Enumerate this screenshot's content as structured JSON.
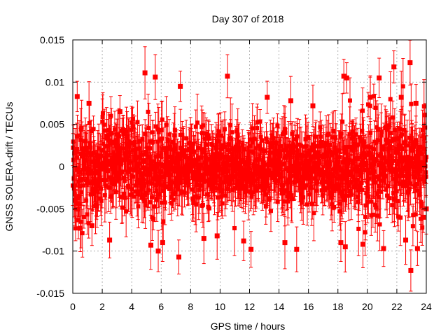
{
  "chart_data": {
    "type": "scatter",
    "title": "Day 307 of 2018",
    "xlabel": "GPS time / hours",
    "ylabel": "GNSS SOLERA-drift / TECUs",
    "xlim": [
      0,
      24
    ],
    "ylim": [
      -0.015,
      0.015
    ],
    "xticks": [
      0,
      2,
      4,
      6,
      8,
      10,
      12,
      14,
      16,
      18,
      20,
      22,
      24
    ],
    "yticks": [
      -0.015,
      -0.01,
      -0.005,
      0,
      0.005,
      0.01,
      0.015
    ],
    "ytick_labels": [
      "-0.015",
      "-0.01",
      "-0.005",
      "0",
      "0.005",
      "0.01",
      "0.015"
    ],
    "grid": true,
    "series_color": "#ff0000",
    "series": [
      {
        "name": "SOLERA-drift",
        "style": "points-with-errorbars",
        "points": [
          {
            "x": 0.3,
            "y": 0.0083
          },
          {
            "x": 0.15,
            "y": -0.004
          },
          {
            "x": 0.5,
            "y": -0.0073
          },
          {
            "x": 1.1,
            "y": 0.0075
          },
          {
            "x": 1.3,
            "y": -0.007
          },
          {
            "x": 2.5,
            "y": -0.0087
          },
          {
            "x": 3.2,
            "y": 0.0065
          },
          {
            "x": 4.9,
            "y": 0.0111
          },
          {
            "x": 5.3,
            "y": -0.0093
          },
          {
            "x": 5.6,
            "y": 0.0106
          },
          {
            "x": 5.8,
            "y": -0.01
          },
          {
            "x": 6.1,
            "y": -0.009
          },
          {
            "x": 7.2,
            "y": -0.0107
          },
          {
            "x": 7.3,
            "y": 0.0095
          },
          {
            "x": 8.9,
            "y": -0.0085
          },
          {
            "x": 9.8,
            "y": -0.0082
          },
          {
            "x": 10.5,
            "y": 0.0107
          },
          {
            "x": 11.6,
            "y": -0.0088
          },
          {
            "x": 12.1,
            "y": -0.0098
          },
          {
            "x": 13.2,
            "y": 0.0082
          },
          {
            "x": 14.4,
            "y": -0.009
          },
          {
            "x": 14.8,
            "y": 0.0078
          },
          {
            "x": 15.2,
            "y": -0.0098
          },
          {
            "x": 16.3,
            "y": 0.0072
          },
          {
            "x": 18.2,
            "y": -0.009
          },
          {
            "x": 18.4,
            "y": 0.0107
          },
          {
            "x": 18.6,
            "y": 0.0105
          },
          {
            "x": 18.5,
            "y": -0.0095
          },
          {
            "x": 19.7,
            "y": -0.0092
          },
          {
            "x": 20.2,
            "y": 0.0082
          },
          {
            "x": 20.8,
            "y": 0.0105
          },
          {
            "x": 21.1,
            "y": -0.0097
          },
          {
            "x": 21.8,
            "y": 0.0118
          },
          {
            "x": 22.3,
            "y": 0.0082
          },
          {
            "x": 22.6,
            "y": -0.0087
          },
          {
            "x": 22.9,
            "y": 0.0123
          },
          {
            "x": 22.95,
            "y": -0.0123
          },
          {
            "x": 23.3,
            "y": 0.0075
          },
          {
            "x": 23.4,
            "y": -0.0097
          },
          {
            "x": 23.8,
            "y": -0.006
          },
          {
            "x": 24.0,
            "y": -0.005
          }
        ]
      }
    ]
  }
}
